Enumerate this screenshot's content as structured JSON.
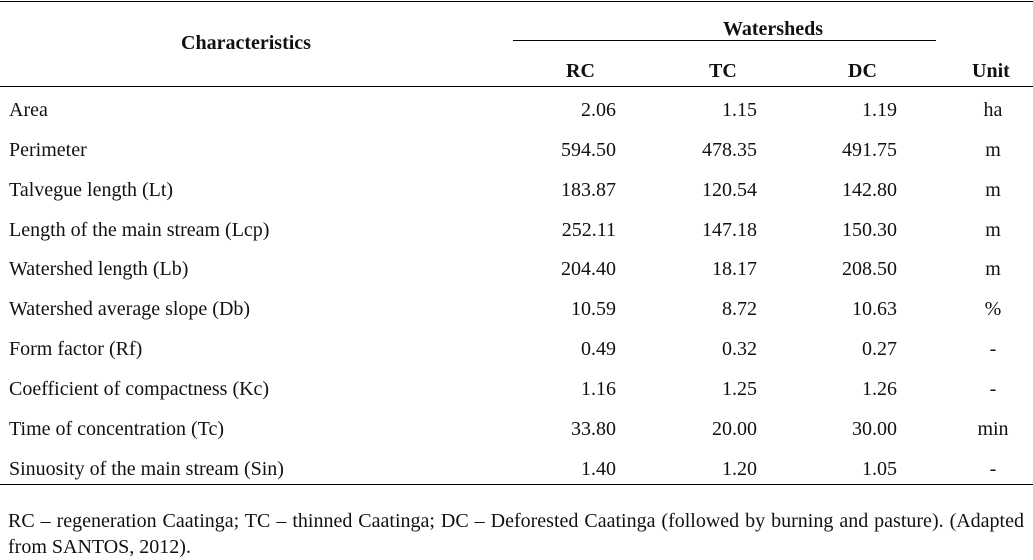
{
  "table": {
    "header": {
      "characteristics": "Characteristics",
      "group": "Watersheds",
      "columns": [
        "RC",
        "TC",
        "DC"
      ],
      "unit": "Unit"
    },
    "rows": [
      {
        "label": "Area",
        "rc": "2.06",
        "tc": "1.15",
        "dc": "1.19",
        "unit": "ha"
      },
      {
        "label": "Perimeter",
        "rc": "594.50",
        "tc": "478.35",
        "dc": "491.75",
        "unit": "m"
      },
      {
        "label": "Talvegue length (Lt)",
        "rc": "183.87",
        "tc": "120.54",
        "dc": "142.80",
        "unit": "m"
      },
      {
        "label": "Length of the main stream (Lcp)",
        "rc": "252.11",
        "tc": "147.18",
        "dc": "150.30",
        "unit": "m"
      },
      {
        "label": "Watershed length (Lb)",
        "rc": "204.40",
        "tc": "18.17",
        "dc": "208.50",
        "unit": "m"
      },
      {
        "label": "Watershed average slope (Db)",
        "rc": "10.59",
        "tc": "8.72",
        "dc": "10.63",
        "unit": "%"
      },
      {
        "label": "Form factor (Rf)",
        "rc": "0.49",
        "tc": "0.32",
        "dc": "0.27",
        "unit": "-"
      },
      {
        "label": "Coefficient of compactness (Kc)",
        "rc": "1.16",
        "tc": "1.25",
        "dc": "1.26",
        "unit": "-"
      },
      {
        "label": "Time of concentration (Tc)",
        "rc": "33.80",
        "tc": "20.00",
        "dc": "30.00",
        "unit": "min"
      },
      {
        "label": "Sinuosity of the main stream (Sin)",
        "rc": "1.40",
        "tc": "1.20",
        "dc": "1.05",
        "unit": "-"
      }
    ]
  },
  "footnote": "RC – regeneration Caatinga; TC – thinned Caatinga; DC – Deforested Caatinga (followed by burning and pasture). (Adapted from SANTOS, 2012)."
}
